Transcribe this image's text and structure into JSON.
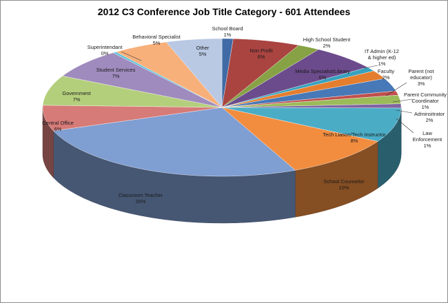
{
  "chart_data": {
    "type": "pie",
    "title": "2012 C3 Conference Job Title Category - 601 Attendees",
    "slices": [
      {
        "name": "School Board",
        "label": "1%",
        "value": 6,
        "color": "#3f6aa5"
      },
      {
        "name": "Non Profit",
        "label": "6%",
        "value": 36,
        "color": "#a94441"
      },
      {
        "name": "High School Student",
        "label": "2%",
        "value": 12,
        "color": "#86a244"
      },
      {
        "name": "Media Specialist/Library",
        "label": "6%",
        "value": 36,
        "color": "#6c4b8c"
      },
      {
        "name": "IT Admin (K-12 & higher ed)",
        "label": "1%",
        "value": 6,
        "color": "#37a2bf"
      },
      {
        "name": "Faculty",
        "label": "2%",
        "value": 12,
        "color": "#e47e2e"
      },
      {
        "name": "Parent (not educator)",
        "label": "3%",
        "value": 18,
        "color": "#4778b7"
      },
      {
        "name": "Parent Community Coordinator",
        "label": "1%",
        "value": 6,
        "color": "#c0504d"
      },
      {
        "name": "Adminsitrator",
        "label": "2%",
        "value": 12,
        "color": "#9bbb59"
      },
      {
        "name": "Law Enforcement",
        "label": "1%",
        "value": 6,
        "color": "#8064a2"
      },
      {
        "name": "Tech Liason/Tech Instructor",
        "label": "8%",
        "value": 48,
        "color": "#4bacc6"
      },
      {
        "name": "School Counselor",
        "label": "10%",
        "value": 60,
        "color": "#f28d3f"
      },
      {
        "name": "Classroom Teacher",
        "label": "26%",
        "value": 156,
        "color": "#7f9ed2"
      },
      {
        "name": "Central Office",
        "label": "6%",
        "value": 36,
        "color": "#d67b78"
      },
      {
        "name": "Government",
        "label": "7%",
        "value": 42,
        "color": "#b4cf7c"
      },
      {
        "name": "Student Services",
        "label": "7%",
        "value": 42,
        "color": "#9f8bbd"
      },
      {
        "name": "Superintendant",
        "label": "0%",
        "value": 2,
        "color": "#5fc1dc"
      },
      {
        "name": "Behavioral Specialist",
        "label": "5%",
        "value": 30,
        "color": "#f8b07b"
      },
      {
        "name": "Other",
        "label": "5%",
        "value": 30,
        "color": "#b9c8e3"
      }
    ]
  }
}
